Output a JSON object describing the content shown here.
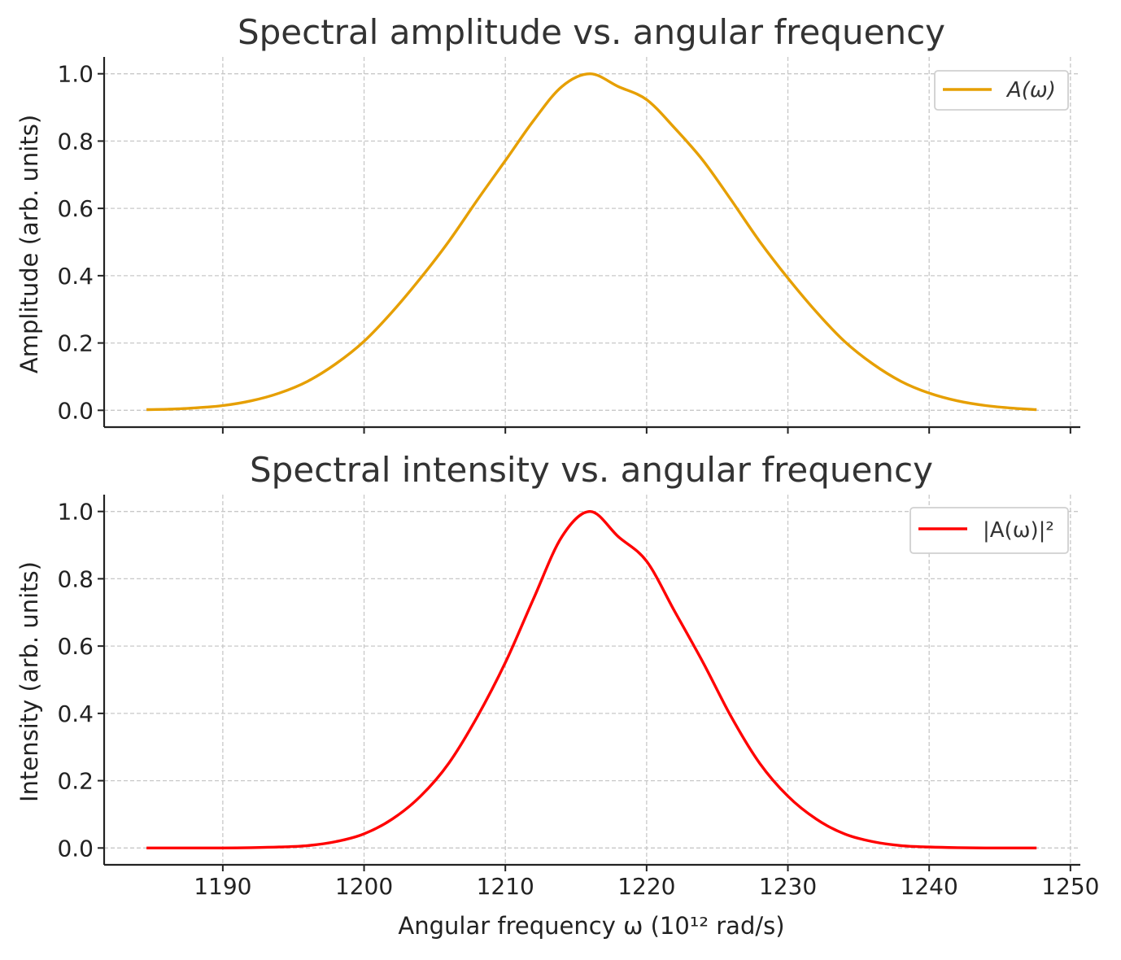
{
  "chart_data": [
    {
      "type": "line",
      "title": "Spectral amplitude vs. angular frequency",
      "xlabel": "",
      "ylabel": "Amplitude (arb. units)",
      "xlim": [
        1181.6,
        1250.7
      ],
      "ylim": [
        -0.05,
        1.05
      ],
      "xticks": [
        1190,
        1200,
        1210,
        1220,
        1230,
        1240,
        1250
      ],
      "yticks": [
        0.0,
        0.2,
        0.4,
        0.6,
        0.8,
        1.0
      ],
      "ytick_labels": [
        "0.0",
        "0.2",
        "0.4",
        "0.6",
        "0.8",
        "1.0"
      ],
      "show_xtick_labels": false,
      "grid": true,
      "legend_position": "top-right",
      "series": [
        {
          "name": "A(ω)",
          "color": "#E69F00",
          "x": [
            1184.6,
            1186,
            1188,
            1190,
            1192,
            1194,
            1196,
            1198,
            1200,
            1202,
            1204,
            1206,
            1208,
            1210,
            1212,
            1214,
            1216,
            1218,
            1220,
            1222,
            1224,
            1226,
            1228,
            1230,
            1232,
            1234,
            1236,
            1238,
            1240,
            1242,
            1244,
            1246,
            1247.6
          ],
          "y": [
            0.002,
            0.003,
            0.007,
            0.014,
            0.028,
            0.051,
            0.086,
            0.138,
            0.205,
            0.293,
            0.393,
            0.502,
            0.624,
            0.742,
            0.861,
            0.962,
            1.0,
            0.962,
            0.923,
            0.838,
            0.742,
            0.624,
            0.502,
            0.393,
            0.293,
            0.205,
            0.138,
            0.086,
            0.051,
            0.028,
            0.014,
            0.006,
            0.002
          ]
        }
      ]
    },
    {
      "type": "line",
      "title": "Spectral intensity vs. angular frequency",
      "xlabel": "Angular frequency ω (10¹² rad/s)",
      "ylabel": "Intensity (arb. units)",
      "xlim": [
        1181.6,
        1250.7
      ],
      "ylim": [
        -0.05,
        1.05
      ],
      "xticks": [
        1190,
        1200,
        1210,
        1220,
        1230,
        1240,
        1250
      ],
      "xtick_labels": [
        "1190",
        "1200",
        "1210",
        "1220",
        "1230",
        "1240",
        "1250"
      ],
      "yticks": [
        0.0,
        0.2,
        0.4,
        0.6,
        0.8,
        1.0
      ],
      "ytick_labels": [
        "0.0",
        "0.2",
        "0.4",
        "0.6",
        "0.8",
        "1.0"
      ],
      "show_xtick_labels": true,
      "grid": true,
      "legend_position": "top-right",
      "series": [
        {
          "name": "|A(ω)|²",
          "color": "#FF0000",
          "x": [
            1184.6,
            1186,
            1188,
            1190,
            1192,
            1194,
            1196,
            1198,
            1200,
            1202,
            1204,
            1206,
            1208,
            1210,
            1212,
            1214,
            1216,
            1218,
            1220,
            1222,
            1224,
            1226,
            1228,
            1230,
            1232,
            1234,
            1236,
            1238,
            1240,
            1242,
            1244,
            1246,
            1247.6
          ],
          "y": [
            0.0,
            0.0,
            0.0,
            0.0,
            0.001,
            0.003,
            0.007,
            0.019,
            0.042,
            0.086,
            0.154,
            0.252,
            0.389,
            0.551,
            0.741,
            0.925,
            1.0,
            0.925,
            0.852,
            0.702,
            0.551,
            0.389,
            0.252,
            0.154,
            0.086,
            0.042,
            0.019,
            0.007,
            0.003,
            0.001,
            0.0,
            0.0,
            0.0
          ]
        }
      ]
    }
  ]
}
